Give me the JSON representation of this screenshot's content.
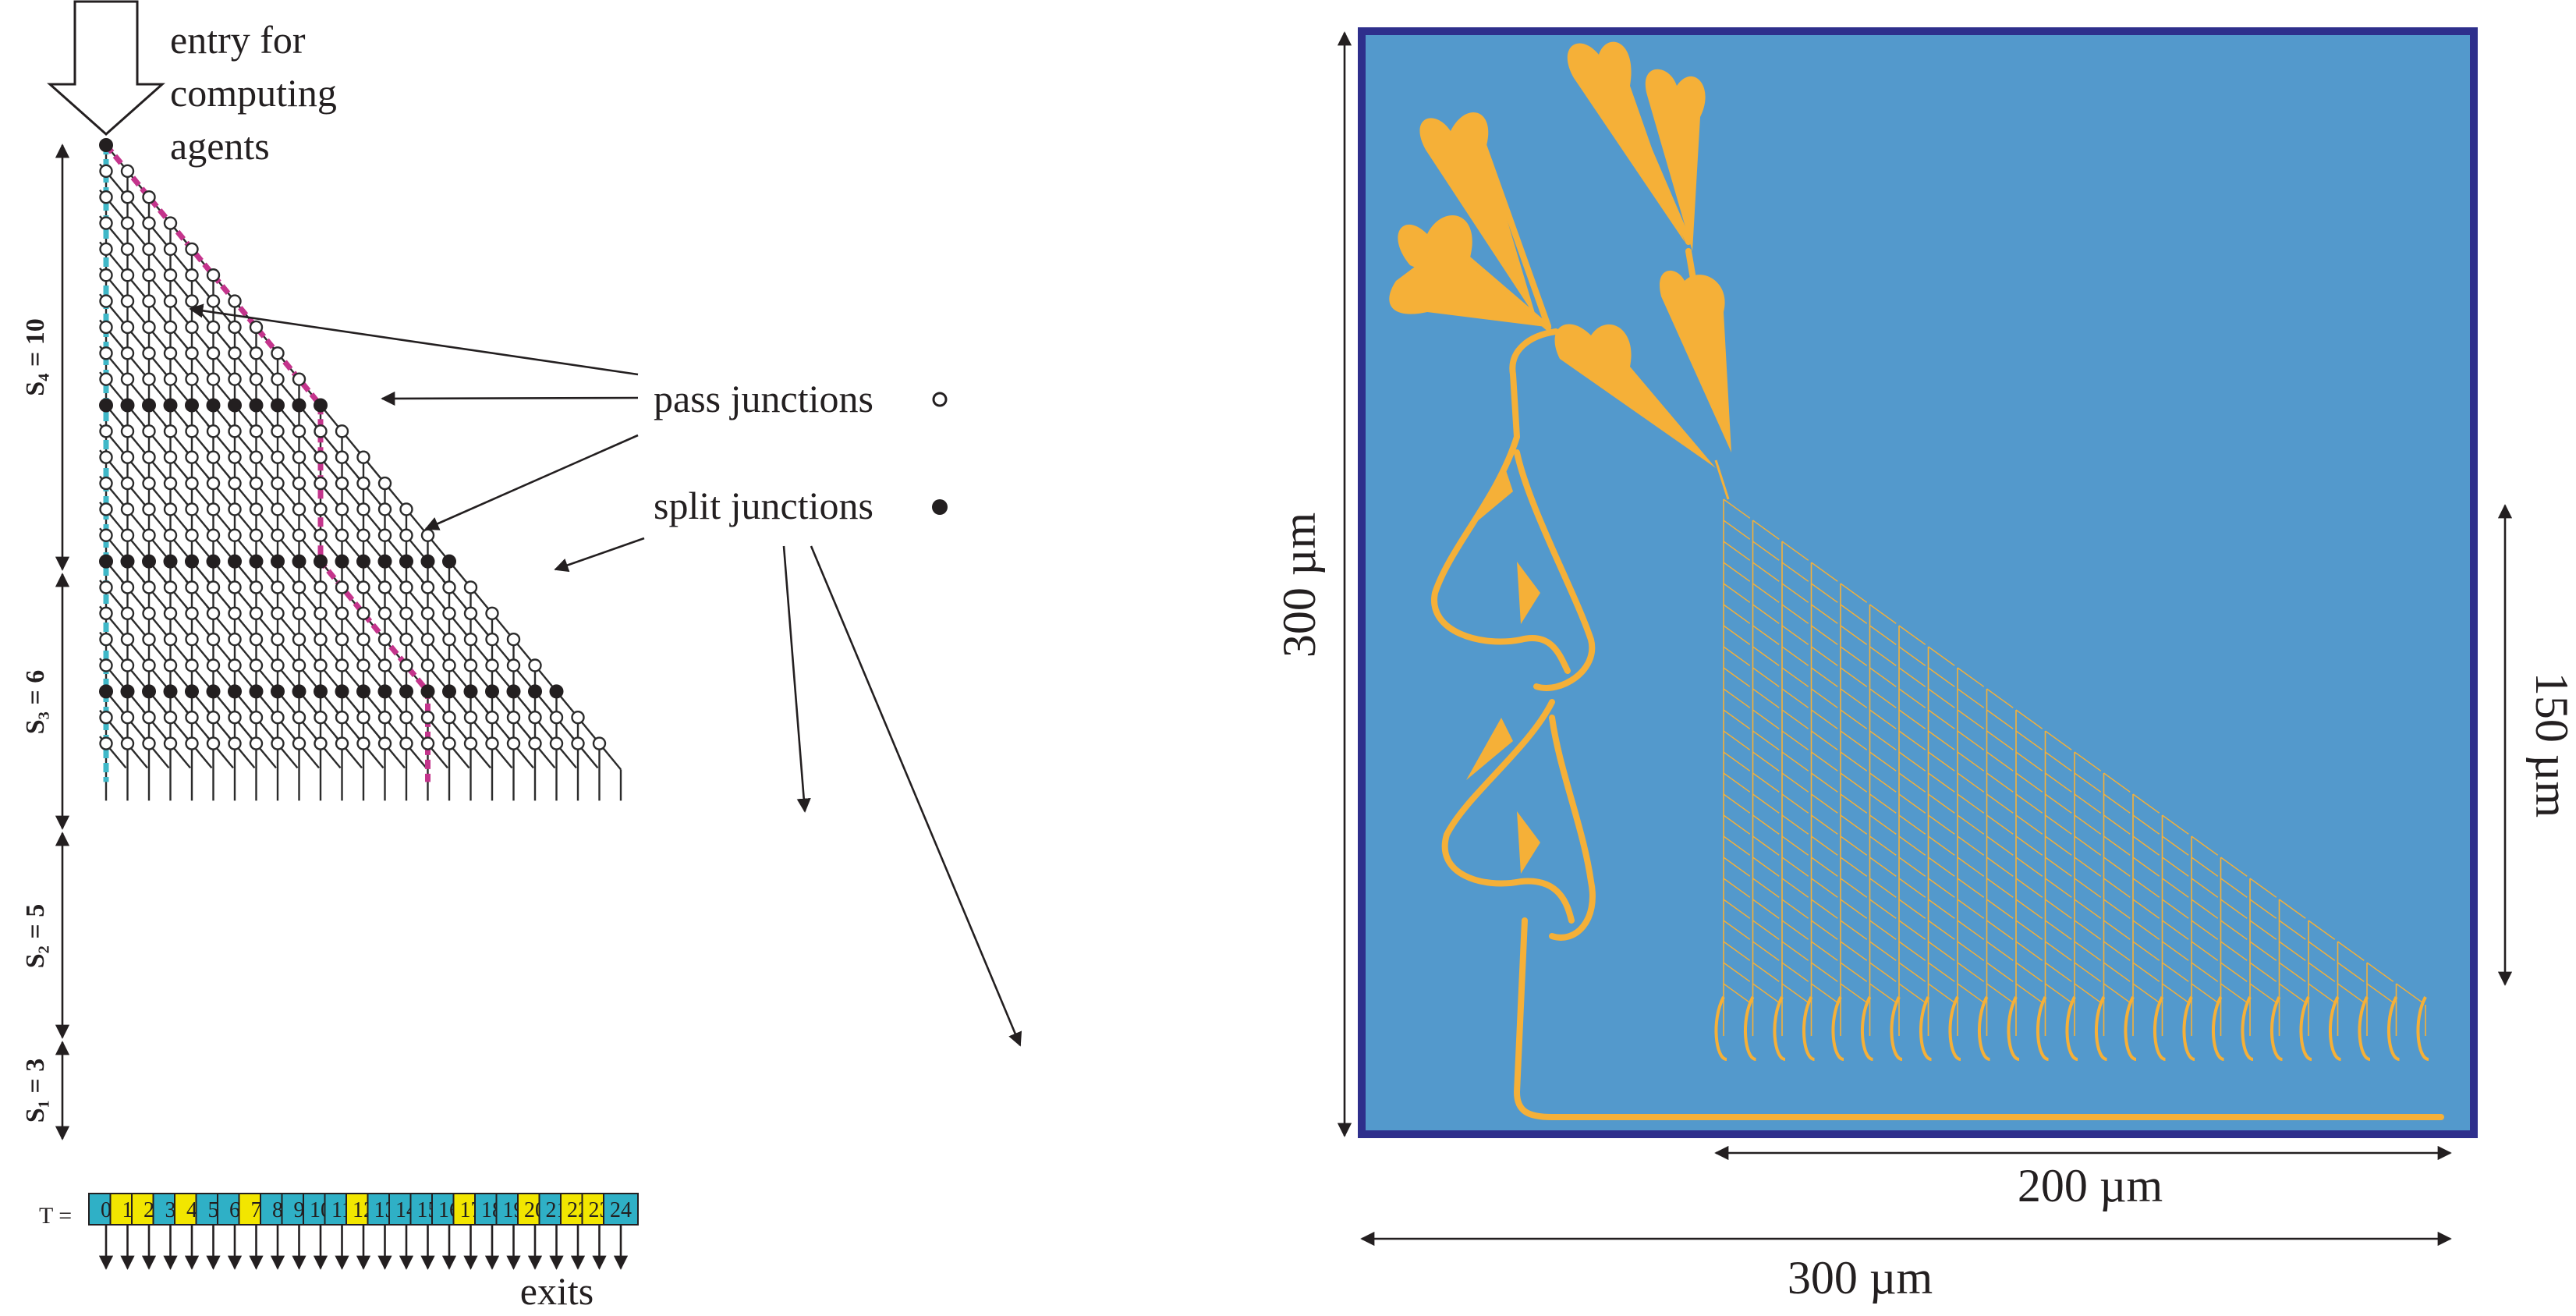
{
  "colors": {
    "cyan_path": "#3fb8c8",
    "magenta_path": "#c4348c",
    "box_cyan": "#2fb0c6",
    "box_yellow": "#f2e600",
    "chip_bg": "#5399cc",
    "chip_border": "#2e2f8c",
    "channel": "#f5b038",
    "line": "#2b2b2b"
  },
  "labels": {
    "entry": [
      "entry for",
      "computing",
      "agents"
    ],
    "pass_junctions": "pass junctions",
    "split_junctions": "split junctions",
    "exits": "exits",
    "t_prefix": "T =",
    "s4": "S₄ = 10",
    "s3": "S₃ = 6",
    "s2": "S₂ = 5",
    "s1": "S₁ = 3"
  },
  "exit_boxes": [
    {
      "t": "0",
      "color": "cyan"
    },
    {
      "t": "1",
      "color": "yellow"
    },
    {
      "t": "2",
      "color": "yellow"
    },
    {
      "t": "3",
      "color": "cyan"
    },
    {
      "t": "4",
      "color": "yellow"
    },
    {
      "t": "5",
      "color": "cyan"
    },
    {
      "t": "6",
      "color": "cyan"
    },
    {
      "t": "7",
      "color": "yellow"
    },
    {
      "t": "8",
      "color": "cyan"
    },
    {
      "t": "9",
      "color": "cyan"
    },
    {
      "t": "10",
      "color": "cyan"
    },
    {
      "t": "11",
      "color": "cyan"
    },
    {
      "t": "12",
      "color": "yellow"
    },
    {
      "t": "13",
      "color": "cyan"
    },
    {
      "t": "14",
      "color": "cyan"
    },
    {
      "t": "15",
      "color": "cyan"
    },
    {
      "t": "16",
      "color": "cyan"
    },
    {
      "t": "17",
      "color": "yellow"
    },
    {
      "t": "18",
      "color": "cyan"
    },
    {
      "t": "19",
      "color": "cyan"
    },
    {
      "t": "20",
      "color": "yellow"
    },
    {
      "t": "21",
      "color": "cyan"
    },
    {
      "t": "22",
      "color": "yellow"
    },
    {
      "t": "23",
      "color": "yellow"
    },
    {
      "t": "24",
      "color": "cyan"
    }
  ],
  "network": {
    "rows": 24,
    "split_rows": [
      10,
      16,
      21
    ],
    "subset_sizes": [
      3,
      5,
      6,
      10
    ],
    "magenta_path": {
      "diagonal_to_row": 10,
      "column": 10,
      "down_to_row": 16,
      "diagonal_to_col": 15,
      "down_to_row_end": 24
    }
  },
  "dimensions": {
    "height": "300 µm",
    "width": "300 µm",
    "network_width": "200 µm",
    "network_height": "150 µm"
  }
}
